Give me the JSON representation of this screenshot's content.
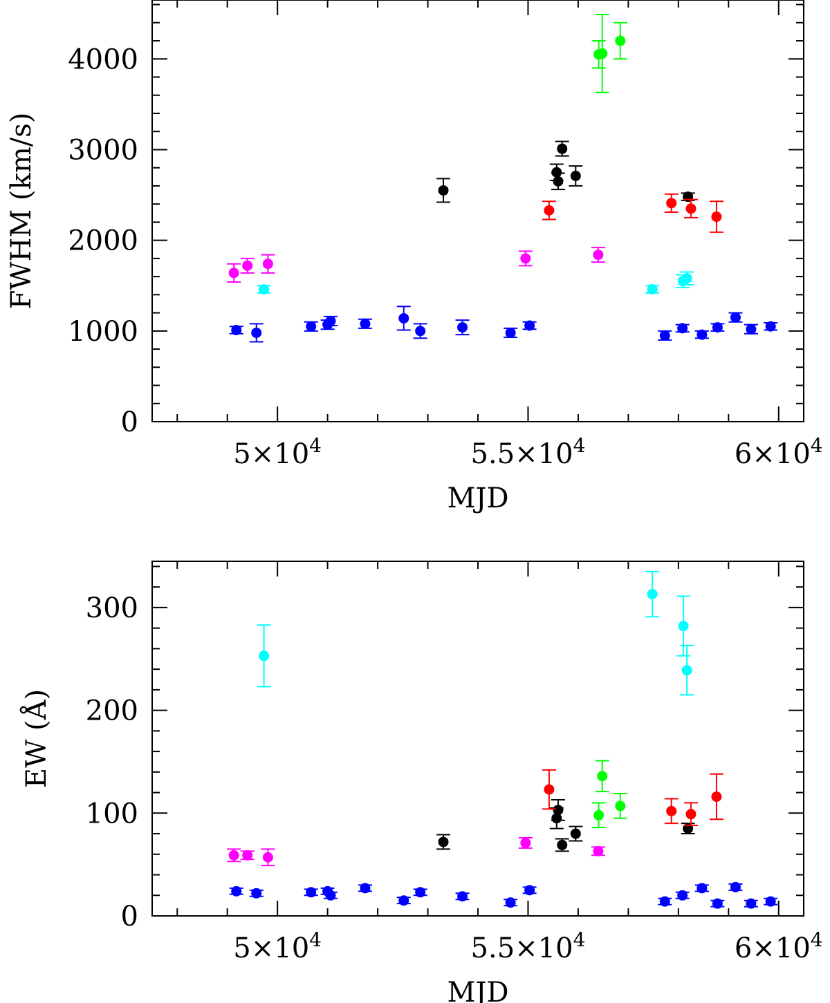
{
  "colors": {
    "magenta": "#ff00ff",
    "cyan": "#00ffff",
    "blue": "#0000ff",
    "black": "#000000",
    "red": "#ff0000",
    "green": "#00ff00"
  },
  "chart_data": [
    {
      "type": "scatter",
      "title": "",
      "xlabel": "MJD",
      "ylabel": "FWHM (km/s)",
      "xlim": [
        47500,
        60500
      ],
      "ylim": [
        0,
        4650
      ],
      "x_major_ticks": [
        50000,
        55000,
        60000
      ],
      "x_tick_labels": [
        {
          "base": "5×10",
          "exp": "4"
        },
        {
          "base": "5.5×10",
          "exp": "4"
        },
        {
          "base": "6×10",
          "exp": "4"
        }
      ],
      "x_minor_step": 1000,
      "y_major_ticks": [
        0,
        1000,
        2000,
        3000,
        4000
      ],
      "y_tick_labels": [
        "0",
        "1000",
        "2000",
        "3000",
        "4000"
      ],
      "y_minor_step": 200,
      "grid": false,
      "series": [
        {
          "name": "magenta",
          "color": "#ff00ff",
          "points": [
            {
              "x": 49130,
              "y": 1640,
              "err": 100
            },
            {
              "x": 49400,
              "y": 1720,
              "err": 80
            },
            {
              "x": 49810,
              "y": 1740,
              "err": 100
            },
            {
              "x": 54950,
              "y": 1800,
              "err": 80
            },
            {
              "x": 56400,
              "y": 1840,
              "err": 80
            }
          ]
        },
        {
          "name": "cyan",
          "color": "#00ffff",
          "points": [
            {
              "x": 49730,
              "y": 1460,
              "err": 40
            },
            {
              "x": 57480,
              "y": 1460,
              "err": 40
            },
            {
              "x": 58090,
              "y": 1550,
              "err": 70
            },
            {
              "x": 58170,
              "y": 1580,
              "err": 70
            }
          ]
        },
        {
          "name": "blue",
          "color": "#0000ff",
          "points": [
            {
              "x": 49180,
              "y": 1010,
              "err": 40
            },
            {
              "x": 49580,
              "y": 980,
              "err": 100
            },
            {
              "x": 50670,
              "y": 1050,
              "err": 50
            },
            {
              "x": 51000,
              "y": 1070,
              "err": 50
            },
            {
              "x": 51060,
              "y": 1110,
              "err": 50
            },
            {
              "x": 51750,
              "y": 1080,
              "err": 50
            },
            {
              "x": 52520,
              "y": 1140,
              "err": 130
            },
            {
              "x": 52850,
              "y": 1000,
              "err": 80
            },
            {
              "x": 53690,
              "y": 1040,
              "err": 80
            },
            {
              "x": 54650,
              "y": 980,
              "err": 50
            },
            {
              "x": 55030,
              "y": 1060,
              "err": 40
            },
            {
              "x": 57730,
              "y": 950,
              "err": 50
            },
            {
              "x": 58080,
              "y": 1030,
              "err": 40
            },
            {
              "x": 58470,
              "y": 960,
              "err": 40
            },
            {
              "x": 58780,
              "y": 1040,
              "err": 40
            },
            {
              "x": 59140,
              "y": 1150,
              "err": 50
            },
            {
              "x": 59450,
              "y": 1020,
              "err": 50
            },
            {
              "x": 59840,
              "y": 1050,
              "err": 40
            }
          ]
        },
        {
          "name": "black",
          "color": "#000000",
          "points": [
            {
              "x": 53310,
              "y": 2550,
              "err": 130
            },
            {
              "x": 55570,
              "y": 2750,
              "err": 90
            },
            {
              "x": 55600,
              "y": 2650,
              "err": 90
            },
            {
              "x": 55680,
              "y": 3010,
              "err": 80
            },
            {
              "x": 55950,
              "y": 2710,
              "err": 110
            },
            {
              "x": 58190,
              "y": 2480,
              "err": 40
            }
          ]
        },
        {
          "name": "red",
          "color": "#ff0000",
          "points": [
            {
              "x": 55420,
              "y": 2330,
              "err": 100
            },
            {
              "x": 57860,
              "y": 2410,
              "err": 100
            },
            {
              "x": 58250,
              "y": 2350,
              "err": 100
            },
            {
              "x": 58760,
              "y": 2260,
              "err": 170
            }
          ]
        },
        {
          "name": "green",
          "color": "#00ff00",
          "points": [
            {
              "x": 56410,
              "y": 4050,
              "err": 150
            },
            {
              "x": 56480,
              "y": 4060,
              "err": 430
            },
            {
              "x": 56840,
              "y": 4200,
              "err": 200
            }
          ]
        }
      ]
    },
    {
      "type": "scatter",
      "title": "",
      "xlabel": "MJD",
      "ylabel": "EW (Å)",
      "xlim": [
        47500,
        60500
      ],
      "ylim": [
        0,
        345
      ],
      "x_major_ticks": [
        50000,
        55000,
        60000
      ],
      "x_tick_labels": [
        {
          "base": "5×10",
          "exp": "4"
        },
        {
          "base": "5.5×10",
          "exp": "4"
        },
        {
          "base": "6×10",
          "exp": "4"
        }
      ],
      "x_minor_step": 1000,
      "y_major_ticks": [
        0,
        100,
        200,
        300
      ],
      "y_tick_labels": [
        "0",
        "100",
        "200",
        "300"
      ],
      "y_minor_step": 20,
      "grid": false,
      "series": [
        {
          "name": "magenta",
          "color": "#ff00ff",
          "points": [
            {
              "x": 49130,
              "y": 59,
              "err": 6
            },
            {
              "x": 49400,
              "y": 59,
              "err": 4
            },
            {
              "x": 49810,
              "y": 57,
              "err": 8
            },
            {
              "x": 54950,
              "y": 71,
              "err": 5
            },
            {
              "x": 56400,
              "y": 63,
              "err": 4
            }
          ]
        },
        {
          "name": "cyan",
          "color": "#00ffff",
          "points": [
            {
              "x": 49730,
              "y": 253,
              "err": 30
            },
            {
              "x": 57480,
              "y": 313,
              "err": 22
            },
            {
              "x": 58100,
              "y": 282,
              "err": 29
            },
            {
              "x": 58170,
              "y": 239,
              "err": 24
            }
          ]
        },
        {
          "name": "blue",
          "color": "#0000ff",
          "points": [
            {
              "x": 49180,
              "y": 24,
              "err": 3
            },
            {
              "x": 49580,
              "y": 22,
              "err": 3
            },
            {
              "x": 50670,
              "y": 23,
              "err": 3
            },
            {
              "x": 51000,
              "y": 24,
              "err": 3
            },
            {
              "x": 51060,
              "y": 20,
              "err": 3
            },
            {
              "x": 51750,
              "y": 27,
              "err": 3
            },
            {
              "x": 52520,
              "y": 15,
              "err": 3
            },
            {
              "x": 52850,
              "y": 23,
              "err": 3
            },
            {
              "x": 53690,
              "y": 19,
              "err": 3
            },
            {
              "x": 54650,
              "y": 13,
              "err": 3
            },
            {
              "x": 55030,
              "y": 25,
              "err": 3
            },
            {
              "x": 57730,
              "y": 14,
              "err": 3
            },
            {
              "x": 58080,
              "y": 20,
              "err": 3
            },
            {
              "x": 58470,
              "y": 27,
              "err": 3
            },
            {
              "x": 58780,
              "y": 12,
              "err": 3
            },
            {
              "x": 59140,
              "y": 28,
              "err": 3
            },
            {
              "x": 59450,
              "y": 12,
              "err": 3
            },
            {
              "x": 59840,
              "y": 14,
              "err": 3
            }
          ]
        },
        {
          "name": "black",
          "color": "#000000",
          "points": [
            {
              "x": 53310,
              "y": 72,
              "err": 7
            },
            {
              "x": 55570,
              "y": 95,
              "err": 10
            },
            {
              "x": 55600,
              "y": 103,
              "err": 10
            },
            {
              "x": 55680,
              "y": 69,
              "err": 6
            },
            {
              "x": 55950,
              "y": 80,
              "err": 7
            },
            {
              "x": 58190,
              "y": 85,
              "err": 5
            }
          ]
        },
        {
          "name": "red",
          "color": "#ff0000",
          "points": [
            {
              "x": 55420,
              "y": 123,
              "err": 19
            },
            {
              "x": 57860,
              "y": 102,
              "err": 12
            },
            {
              "x": 58250,
              "y": 99,
              "err": 11
            },
            {
              "x": 58760,
              "y": 116,
              "err": 22
            }
          ]
        },
        {
          "name": "green",
          "color": "#00ff00",
          "points": [
            {
              "x": 56410,
              "y": 98,
              "err": 12
            },
            {
              "x": 56480,
              "y": 136,
              "err": 15
            },
            {
              "x": 56840,
              "y": 107,
              "err": 12
            }
          ]
        }
      ]
    }
  ]
}
